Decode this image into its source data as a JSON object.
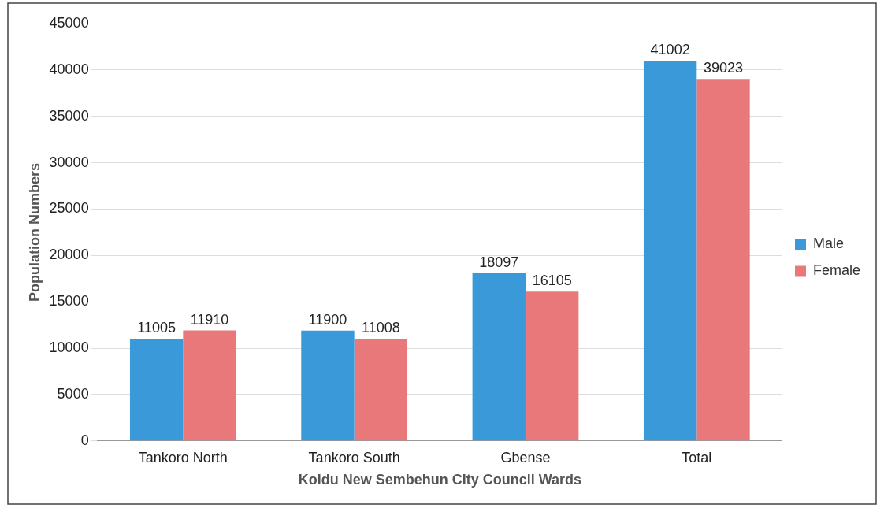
{
  "chart_data": {
    "type": "bar",
    "xlabel": "Koidu New Sembehun City Council Wards",
    "ylabel": "Population Numbers",
    "categories": [
      "Tankoro North",
      "Tankoro South",
      "Gbense",
      "Total"
    ],
    "series": [
      {
        "name": "Male",
        "color": "#3a9ad9",
        "values": [
          11005,
          11900,
          18097,
          41002
        ]
      },
      {
        "name": "Female",
        "color": "#e8787a",
        "values": [
          11910,
          11008,
          16105,
          39023
        ]
      }
    ],
    "ylim": [
      0,
      45000
    ],
    "yticks": [
      0,
      5000,
      10000,
      15000,
      20000,
      25000,
      30000,
      35000,
      40000,
      45000
    ],
    "grid": "y",
    "legend": "right",
    "data_labels": true
  }
}
